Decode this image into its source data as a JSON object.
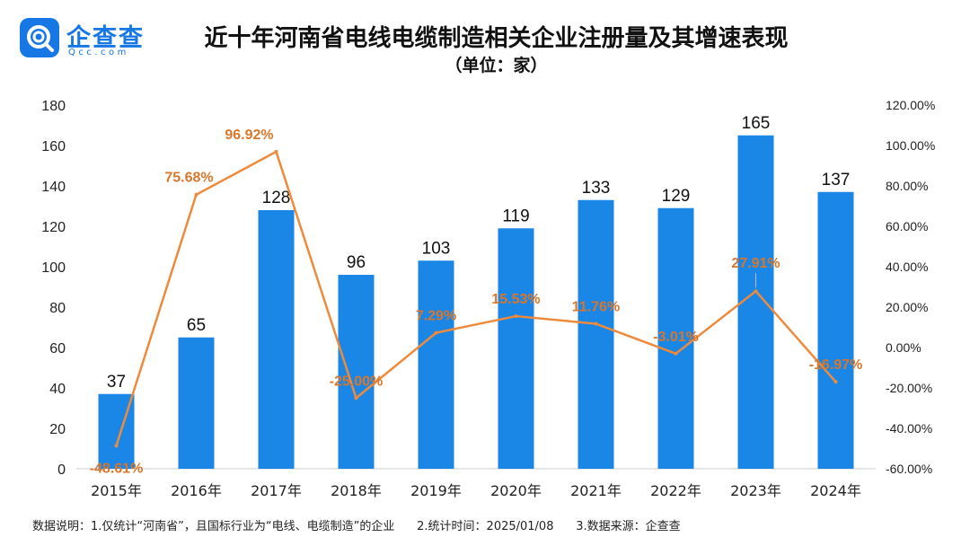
{
  "brand": {
    "name": "企查查",
    "sub": "Qcc.com"
  },
  "header": {
    "title": "近十年河南省电线电缆制造相关企业注册量及其增速表现",
    "subtitle": "（单位：家）"
  },
  "footer": {
    "note1": "数据说明：1.仅统计“河南省”，且国标行业为“电线、电缆制造”的企业",
    "note2": "2.统计时间：2025/01/08",
    "note3": "3.数据来源：企查查"
  },
  "colors": {
    "bar": "#1a86e6",
    "line": "#ee8a3c",
    "rate_label": "#d8772c",
    "brand": "#1677e5"
  },
  "chart_data": {
    "type": "bar",
    "categories": [
      "2015年",
      "2016年",
      "2017年",
      "2018年",
      "2019年",
      "2020年",
      "2021年",
      "2022年",
      "2023年",
      "2024年"
    ],
    "series": [
      {
        "type": "bar",
        "axis": "left",
        "values": [
          37,
          65,
          128,
          96,
          103,
          119,
          133,
          129,
          165,
          137
        ]
      },
      {
        "type": "line",
        "axis": "right",
        "values": [
          -48.61,
          75.68,
          96.92,
          -25.0,
          7.29,
          15.53,
          11.76,
          -3.01,
          27.91,
          -16.97
        ],
        "labels": [
          "-48.61%",
          "75.68%",
          "96.92%",
          "-25.00%",
          "7.29%",
          "15.53%",
          "11.76%",
          "-3.01%",
          "27.91%",
          "-16.97%"
        ]
      }
    ],
    "y_left": {
      "ylim": [
        0,
        180
      ],
      "ticks": [
        "0",
        "20",
        "40",
        "60",
        "80",
        "100",
        "120",
        "140",
        "160",
        "180"
      ]
    },
    "y_right": {
      "ylim": [
        -60,
        120
      ],
      "ticks": [
        "-60.00%",
        "-40.00%",
        "-20.00%",
        "0.00%",
        "20.00%",
        "40.00%",
        "60.00%",
        "80.00%",
        "100.00%",
        "120.00%"
      ]
    },
    "grid": false
  }
}
